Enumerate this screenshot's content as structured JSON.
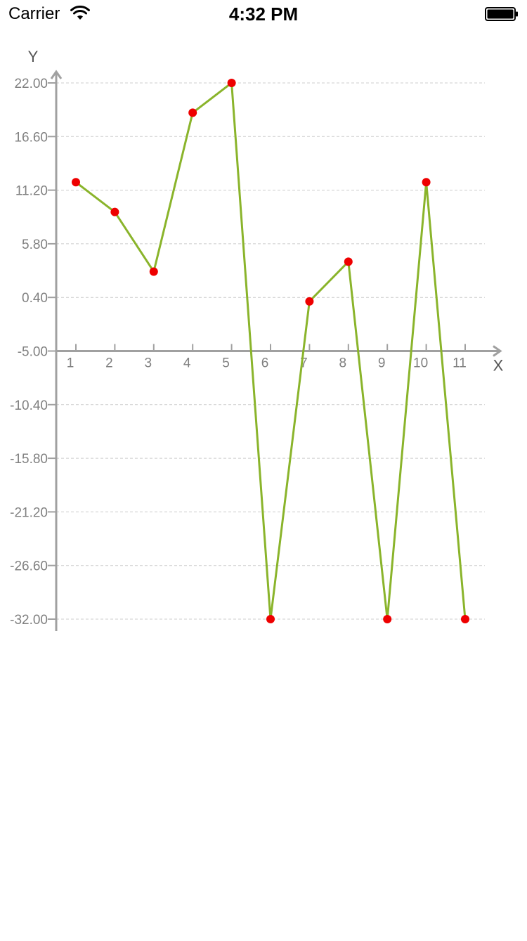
{
  "status_bar": {
    "carrier": "Carrier",
    "time": "4:32 PM",
    "wifi_icon": "wifi-icon",
    "battery_icon": "battery-icon"
  },
  "chart_data": {
    "type": "line",
    "title": "",
    "xlabel": "X",
    "ylabel": "Y",
    "x": [
      1,
      2,
      3,
      4,
      5,
      6,
      7,
      8,
      9,
      10,
      11
    ],
    "categories": [
      "1",
      "2",
      "3",
      "4",
      "5",
      "6",
      "7",
      "8",
      "9",
      "10",
      "11"
    ],
    "series": [
      {
        "values": [
          12,
          9,
          3,
          19,
          22,
          -32,
          0,
          4,
          -32,
          12,
          -32
        ]
      }
    ],
    "ylim": [
      -32,
      22
    ],
    "xlim": [
      0.5,
      11.5
    ],
    "y_ticks": [
      "22.00",
      "16.60",
      "11.20",
      "5.80",
      "0.40",
      "-5.00",
      "-10.40",
      "-15.80",
      "-21.20",
      "-26.60",
      "-32.00"
    ],
    "y_tick_values": [
      22,
      16.6,
      11.2,
      5.8,
      0.4,
      -5,
      -10.4,
      -15.8,
      -21.2,
      -26.6,
      -32
    ],
    "x_axis_crosses_y_at": -5,
    "grid": true,
    "colors": {
      "line": "#8ab42b",
      "point": "#ee0000",
      "axis": "#a0a0a0",
      "grid": "#cccccc",
      "tick_label": "#808080"
    }
  }
}
